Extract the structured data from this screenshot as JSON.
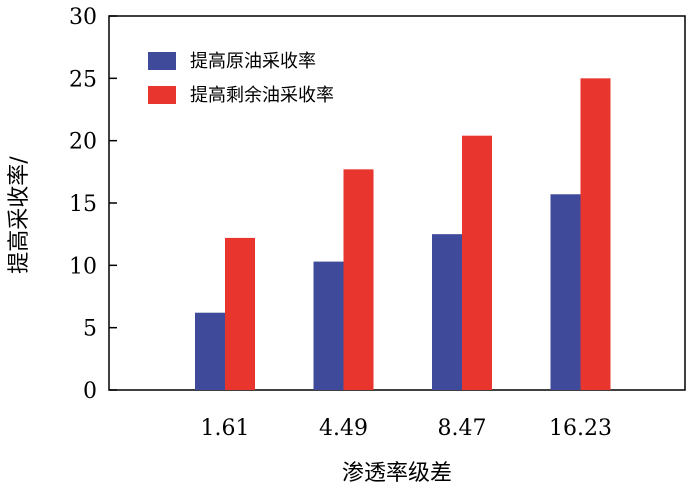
{
  "chart_data": {
    "type": "bar",
    "categories": [
      "1.61",
      "4.49",
      "8.47",
      "16.23"
    ],
    "series": [
      {
        "name": "提高原油采收率",
        "values": [
          6.2,
          10.3,
          12.5,
          15.7
        ],
        "color": "#3f4a9a"
      },
      {
        "name": "提高剩余油采收率",
        "values": [
          12.2,
          17.7,
          20.4,
          25.0
        ],
        "color": "#e8352e"
      }
    ],
    "xlabel": "渗透率级差",
    "ylabel": "提高采收率/",
    "ylim": [
      0,
      30
    ],
    "yticks": [
      0,
      5,
      10,
      15,
      20,
      25,
      30
    ],
    "grid": false,
    "legend_position": "top-left"
  }
}
